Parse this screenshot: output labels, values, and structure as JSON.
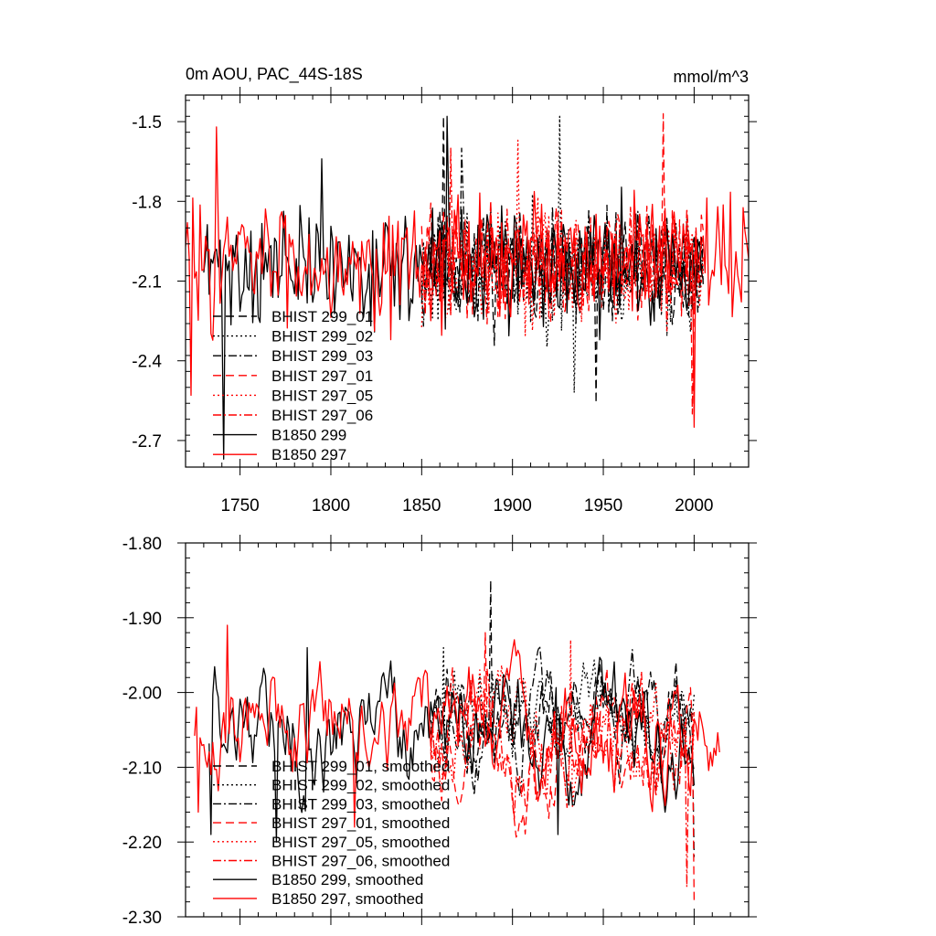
{
  "chart_data": [
    {
      "type": "line",
      "title": "0m AOU, PAC_44S-18S",
      "units_label": "mmol/m^3",
      "xlim": [
        1720,
        2030
      ],
      "ylim": [
        -2.8,
        -1.4
      ],
      "x_ticks": [
        1750,
        1800,
        1850,
        1900,
        1950,
        2000
      ],
      "x_tick_labels": [
        "1750",
        "1800",
        "1850",
        "1900",
        "1950",
        "2000"
      ],
      "y_ticks": [
        -1.5,
        -1.8,
        -2.1,
        -2.4,
        -2.7
      ],
      "y_tick_labels": [
        "-1.5",
        "-1.8",
        "-2.1",
        "-2.4",
        "-2.7"
      ],
      "legend_position": "bottom-left",
      "series": [
        {
          "name": "BHIST 299_01",
          "color": "#000000",
          "dash": "dash",
          "x_start": 1850,
          "x_end": 2005,
          "mean": -2.05,
          "amplitude": 0.2,
          "seed": 11,
          "extremes": [
            [
              1862,
              -1.48
            ],
            [
              1946,
              -2.56
            ]
          ]
        },
        {
          "name": "BHIST 299_02",
          "color": "#000000",
          "dash": "dot",
          "x_start": 1850,
          "x_end": 2005,
          "mean": -2.07,
          "amplitude": 0.2,
          "seed": 23,
          "extremes": [
            [
              1926,
              -1.48
            ],
            [
              1934,
              -2.52
            ]
          ]
        },
        {
          "name": "BHIST 299_03",
          "color": "#000000",
          "dash": "dashdot",
          "x_start": 1850,
          "x_end": 2005,
          "mean": -2.04,
          "amplitude": 0.19,
          "seed": 37,
          "extremes": [
            [
              1872,
              -1.6
            ]
          ]
        },
        {
          "name": "BHIST 297_01",
          "color": "#ff0000",
          "dash": "dash",
          "x_start": 1850,
          "x_end": 2005,
          "mean": -2.03,
          "amplitude": 0.2,
          "seed": 41,
          "extremes": [
            [
              1983,
              -1.47
            ],
            [
              1999,
              -2.6
            ]
          ]
        },
        {
          "name": "BHIST 297_05",
          "color": "#ff0000",
          "dash": "dot",
          "x_start": 1850,
          "x_end": 2005,
          "mean": -2.05,
          "amplitude": 0.2,
          "seed": 53,
          "extremes": [
            [
              1903,
              -1.57
            ]
          ]
        },
        {
          "name": "BHIST 297_06",
          "color": "#ff0000",
          "dash": "dashdot",
          "x_start": 1850,
          "x_end": 2005,
          "mean": -2.04,
          "amplitude": 0.19,
          "seed": 61,
          "extremes": [
            [
              1866,
              -1.6
            ]
          ]
        },
        {
          "name": "B1850 299",
          "color": "#000000",
          "dash": "solid",
          "x_start": 1730,
          "x_end": 2005,
          "mean": -2.05,
          "amplitude": 0.2,
          "seed": 71,
          "extremes": [
            [
              1741,
              -2.77
            ],
            [
              1864,
              -1.48
            ],
            [
              1795,
              -1.64
            ]
          ]
        },
        {
          "name": "B1850 297",
          "color": "#ff0000",
          "dash": "solid",
          "x_start": 1720,
          "x_end": 2030,
          "mean": -2.02,
          "amplitude": 0.21,
          "seed": 83,
          "extremes": [
            [
              1737,
              -1.52
            ],
            [
              1723,
              -2.53
            ],
            [
              2000,
              -2.65
            ]
          ]
        }
      ]
    },
    {
      "type": "line",
      "xlim": [
        1720,
        2030
      ],
      "ylim": [
        -2.3,
        -1.8
      ],
      "x_ticks": [
        1750,
        1800,
        1850,
        1900,
        1950,
        2000
      ],
      "y_ticks": [
        -1.8,
        -1.9,
        -2.0,
        -2.1,
        -2.2,
        -2.3
      ],
      "y_tick_labels": [
        "-1.80",
        "-1.90",
        "-2.00",
        "-2.10",
        "-2.20",
        "-2.30"
      ],
      "legend_position": "bottom-left",
      "series": [
        {
          "name": "BHIST 299_01, smoothed",
          "color": "#000000",
          "dash": "dash",
          "x_start": 1855,
          "x_end": 2000,
          "mean": -2.02,
          "amplitude": 0.05,
          "seed": 111,
          "extremes": [
            [
              1888,
              -1.85
            ],
            [
              2000,
              -2.22
            ]
          ]
        },
        {
          "name": "BHIST 299_02, smoothed",
          "color": "#000000",
          "dash": "dot",
          "x_start": 1855,
          "x_end": 2000,
          "mean": -2.03,
          "amplitude": 0.05,
          "seed": 123,
          "extremes": [
            [
              1862,
              -1.94
            ]
          ]
        },
        {
          "name": "BHIST 299_03, smoothed",
          "color": "#000000",
          "dash": "dashdot",
          "x_start": 1855,
          "x_end": 2000,
          "mean": -2.04,
          "amplitude": 0.05,
          "seed": 137,
          "extremes": []
        },
        {
          "name": "BHIST 297_01, smoothed",
          "color": "#ff0000",
          "dash": "dash",
          "x_start": 1855,
          "x_end": 2000,
          "mean": -2.06,
          "amplitude": 0.06,
          "seed": 141,
          "extremes": [
            [
              2000,
              -2.28
            ],
            [
              1885,
              -1.92
            ]
          ]
        },
        {
          "name": "BHIST 297_05, smoothed",
          "color": "#ff0000",
          "dash": "dot",
          "x_start": 1855,
          "x_end": 2000,
          "mean": -2.05,
          "amplitude": 0.05,
          "seed": 153,
          "extremes": [
            [
              1932,
              -1.93
            ]
          ]
        },
        {
          "name": "BHIST 297_06, smoothed",
          "color": "#ff0000",
          "dash": "dashdot",
          "x_start": 1855,
          "x_end": 2000,
          "mean": -2.06,
          "amplitude": 0.06,
          "seed": 161,
          "extremes": [
            [
              1996,
              -2.26
            ]
          ]
        },
        {
          "name": "B1850 299, smoothed",
          "color": "#000000",
          "dash": "solid",
          "x_start": 1733,
          "x_end": 2000,
          "mean": -2.05,
          "amplitude": 0.06,
          "seed": 171,
          "extremes": [
            [
              1734,
              -2.19
            ],
            [
              1770,
              -2.2
            ],
            [
              1787,
              -1.94
            ],
            [
              1925,
              -2.19
            ]
          ]
        },
        {
          "name": "B1850 297, smoothed",
          "color": "#ff0000",
          "dash": "solid",
          "x_start": 1725,
          "x_end": 2014,
          "mean": -2.04,
          "amplitude": 0.06,
          "seed": 183,
          "extremes": [
            [
              1743,
              -1.91
            ],
            [
              1727,
              -2.16
            ],
            [
              1813,
              -2.18
            ],
            [
              2014,
              -2.08
            ]
          ]
        }
      ]
    }
  ]
}
